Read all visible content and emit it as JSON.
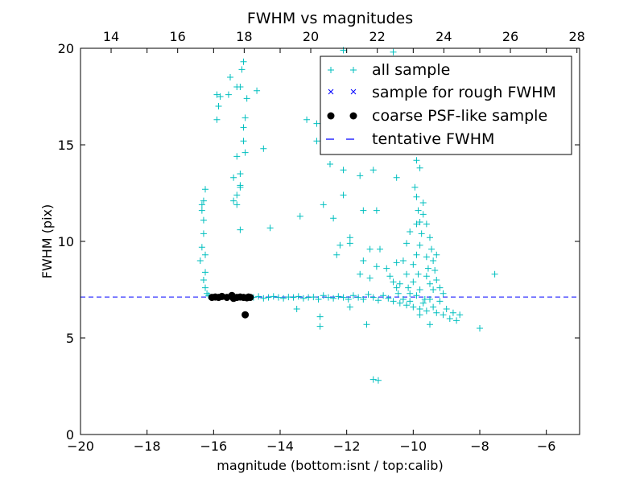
{
  "chart_data": {
    "type": "scatter",
    "title": "FWHM vs magnitudes",
    "xlabel": "magnitude (bottom:isnt / top:calib)",
    "ylabel": "FWHM (pix)",
    "xlim": [
      -20,
      -5
    ],
    "ylim": [
      0,
      20
    ],
    "xticks": [
      -20,
      -18,
      -16,
      -14,
      -12,
      -10,
      -8,
      -6
    ],
    "xtick_labels": [
      "−20",
      "−18",
      "−16",
      "−14",
      "−12",
      "−10",
      "−8",
      "−6"
    ],
    "yticks": [
      0,
      5,
      10,
      15,
      20
    ],
    "ytick_labels": [
      "0",
      "5",
      "10",
      "15",
      "20"
    ],
    "top_axis": {
      "offset": 33.08,
      "ticks": [
        14,
        16,
        18,
        20,
        22,
        24,
        26,
        28
      ],
      "tick_labels": [
        "14",
        "16",
        "18",
        "20",
        "22",
        "24",
        "26",
        "28"
      ]
    },
    "legend_position": "top-right",
    "legend": [
      "all sample",
      "sample for rough FWHM",
      "coarse PSF-like sample",
      "tentative FWHM"
    ],
    "colors": {
      "all": "#00BFBF",
      "rough": "#0000FF",
      "psf": "#000000",
      "line": "#0000FF"
    },
    "tentative_fwhm": 7.12,
    "series": [
      {
        "name": "all sample",
        "marker": "+",
        "points": [
          [
            -16.25,
            12.7
          ],
          [
            -16.3,
            12.1
          ],
          [
            -16.35,
            11.9
          ],
          [
            -16.3,
            11.1
          ],
          [
            -16.3,
            10.4
          ],
          [
            -16.35,
            9.7
          ],
          [
            -16.4,
            9.0
          ],
          [
            -16.25,
            8.4
          ],
          [
            -16.3,
            8.0
          ],
          [
            -16.25,
            7.6
          ],
          [
            -16.2,
            7.3
          ],
          [
            -16.15,
            7.2
          ],
          [
            -16.25,
            9.3
          ],
          [
            -16.35,
            11.6
          ],
          [
            -15.1,
            19.3
          ],
          [
            -15.15,
            18.9
          ],
          [
            -15.5,
            18.5
          ],
          [
            -15.3,
            18.0
          ],
          [
            -15.2,
            18.0
          ],
          [
            -15.55,
            17.6
          ],
          [
            -15.0,
            17.4
          ],
          [
            -14.7,
            17.8
          ],
          [
            -15.9,
            17.6
          ],
          [
            -15.8,
            17.5
          ],
          [
            -15.85,
            17.0
          ],
          [
            -15.9,
            16.3
          ],
          [
            -15.05,
            16.4
          ],
          [
            -15.1,
            15.9
          ],
          [
            -14.5,
            14.8
          ],
          [
            -15.05,
            14.6
          ],
          [
            -15.3,
            14.4
          ],
          [
            -15.2,
            13.5
          ],
          [
            -15.4,
            13.3
          ],
          [
            -15.2,
            12.8
          ],
          [
            -15.3,
            12.4
          ],
          [
            -15.4,
            12.1
          ],
          [
            -15.3,
            11.9
          ],
          [
            -15.2,
            10.6
          ],
          [
            -14.3,
            10.7
          ],
          [
            -15.1,
            15.2
          ],
          [
            -15.2,
            12.9
          ],
          [
            -13.2,
            16.3
          ],
          [
            -12.9,
            16.1
          ],
          [
            -12.9,
            15.2
          ],
          [
            -12.5,
            14.0
          ],
          [
            -12.1,
            13.7
          ],
          [
            -11.6,
            13.4
          ],
          [
            -11.2,
            13.7
          ],
          [
            -10.5,
            13.3
          ],
          [
            -12.7,
            11.9
          ],
          [
            -12.1,
            12.4
          ],
          [
            -11.5,
            11.6
          ],
          [
            -11.1,
            11.6
          ],
          [
            -13.4,
            11.3
          ],
          [
            -12.4,
            11.2
          ],
          [
            -11.9,
            10.2
          ],
          [
            -11.9,
            9.9
          ],
          [
            -11.3,
            9.6
          ],
          [
            -11.0,
            9.6
          ],
          [
            -12.2,
            9.8
          ],
          [
            -12.3,
            9.3
          ],
          [
            -11.5,
            9.0
          ],
          [
            -11.1,
            8.7
          ],
          [
            -11.6,
            8.3
          ],
          [
            -11.3,
            8.1
          ],
          [
            -10.8,
            8.6
          ],
          [
            -10.7,
            8.2
          ],
          [
            -10.5,
            7.6
          ],
          [
            -10.1,
            7.3
          ],
          [
            -12.8,
            6.1
          ],
          [
            -12.8,
            5.6
          ],
          [
            -11.4,
            5.7
          ],
          [
            -13.5,
            6.5
          ],
          [
            -11.9,
            6.6
          ],
          [
            -11.2,
            2.85
          ],
          [
            -11.05,
            2.8
          ],
          [
            -12.1,
            19.9
          ],
          [
            -10.6,
            19.8
          ],
          [
            -11.3,
            18.8
          ],
          [
            -12.6,
            18.6
          ],
          [
            -10.1,
            18.3
          ],
          [
            -10.1,
            17.8
          ],
          [
            -11.6,
            17.0
          ],
          [
            -9.9,
            14.2
          ],
          [
            -9.8,
            13.8
          ],
          [
            -8.0,
            5.5
          ],
          [
            -7.55,
            8.3
          ],
          [
            -8.6,
            6.2
          ],
          [
            -14.8,
            7.1
          ],
          [
            -14.65,
            7.15
          ],
          [
            -14.5,
            7.05
          ],
          [
            -14.35,
            7.1
          ],
          [
            -14.2,
            7.15
          ],
          [
            -14.05,
            7.1
          ],
          [
            -13.9,
            7.05
          ],
          [
            -13.75,
            7.12
          ],
          [
            -13.6,
            7.1
          ],
          [
            -13.45,
            7.15
          ],
          [
            -13.3,
            7.05
          ],
          [
            -13.15,
            7.1
          ],
          [
            -13.0,
            7.12
          ],
          [
            -12.85,
            7.0
          ],
          [
            -12.7,
            7.2
          ],
          [
            -12.55,
            7.1
          ],
          [
            -12.4,
            7.05
          ],
          [
            -12.25,
            7.15
          ],
          [
            -12.1,
            7.1
          ],
          [
            -11.95,
            7.0
          ],
          [
            -11.8,
            7.2
          ],
          [
            -11.65,
            7.1
          ],
          [
            -11.5,
            7.0
          ],
          [
            -11.35,
            7.25
          ],
          [
            -11.2,
            7.1
          ],
          [
            -11.05,
            6.95
          ],
          [
            -10.9,
            7.2
          ],
          [
            -10.75,
            7.05
          ],
          [
            -10.6,
            6.9
          ],
          [
            -10.45,
            7.3
          ],
          [
            -10.4,
            6.8
          ],
          [
            -10.3,
            7.0
          ],
          [
            -10.2,
            6.7
          ],
          [
            -10.1,
            6.9
          ],
          [
            -10.0,
            6.6
          ],
          [
            -9.9,
            7.2
          ],
          [
            -9.8,
            6.5
          ],
          [
            -9.7,
            6.8
          ],
          [
            -9.6,
            6.4
          ],
          [
            -9.5,
            7.0
          ],
          [
            -9.4,
            6.6
          ],
          [
            -9.3,
            6.3
          ],
          [
            -9.2,
            6.9
          ],
          [
            -9.1,
            6.2
          ],
          [
            -9.0,
            6.5
          ],
          [
            -8.9,
            6.0
          ],
          [
            -8.8,
            6.3
          ],
          [
            -8.7,
            5.9
          ],
          [
            -9.5,
            5.7
          ],
          [
            -9.8,
            6.2
          ],
          [
            -10.4,
            7.8
          ],
          [
            -10.2,
            8.3
          ],
          [
            -10.0,
            8.8
          ],
          [
            -9.9,
            9.3
          ],
          [
            -9.8,
            9.8
          ],
          [
            -9.75,
            10.4
          ],
          [
            -9.8,
            11.0
          ],
          [
            -9.85,
            11.6
          ],
          [
            -9.9,
            12.3
          ],
          [
            -9.95,
            12.8
          ],
          [
            -9.7,
            12.0
          ],
          [
            -9.7,
            11.4
          ],
          [
            -9.6,
            10.9
          ],
          [
            -9.5,
            10.2
          ],
          [
            -9.45,
            9.6
          ],
          [
            -9.4,
            9.0
          ],
          [
            -9.35,
            8.5
          ],
          [
            -9.3,
            8.0
          ],
          [
            -9.2,
            7.6
          ],
          [
            -9.1,
            7.3
          ],
          [
            -10.3,
            9.0
          ],
          [
            -10.2,
            9.9
          ],
          [
            -10.1,
            10.5
          ],
          [
            -9.9,
            10.9
          ],
          [
            -10.5,
            8.9
          ],
          [
            -10.6,
            7.9
          ],
          [
            -9.6,
            8.2
          ],
          [
            -9.5,
            7.8
          ],
          [
            -9.4,
            7.5
          ],
          [
            -9.6,
            9.2
          ],
          [
            -10.0,
            7.9
          ],
          [
            -9.8,
            7.5
          ],
          [
            -9.3,
            9.3
          ],
          [
            -9.55,
            8.6
          ],
          [
            -9.65,
            7.0
          ],
          [
            -9.85,
            8.3
          ],
          [
            -10.15,
            7.6
          ]
        ]
      },
      {
        "name": "coarse PSF-like sample",
        "marker": "o",
        "points": [
          [
            -16.05,
            7.1
          ],
          [
            -15.95,
            7.12
          ],
          [
            -15.85,
            7.1
          ],
          [
            -15.75,
            7.15
          ],
          [
            -15.6,
            7.1
          ],
          [
            -15.45,
            7.2
          ],
          [
            -15.4,
            7.05
          ],
          [
            -15.3,
            7.1
          ],
          [
            -15.2,
            7.12
          ],
          [
            -15.1,
            7.1
          ],
          [
            -15.0,
            7.08
          ],
          [
            -14.95,
            7.12
          ],
          [
            -14.9,
            7.1
          ],
          [
            -15.05,
            6.2
          ]
        ]
      }
    ]
  }
}
